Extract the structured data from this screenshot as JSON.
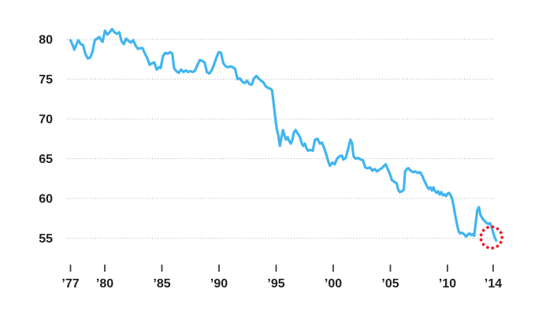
{
  "chart_data": {
    "type": "line",
    "title": "",
    "xlabel": "",
    "ylabel": "",
    "grid": "horizontal-dotted",
    "line_color": "#41b5f0",
    "grid_color": "#ababab",
    "axis_text_color": "#1f1f1f",
    "tick_mark_color": "#3f3f3f",
    "background_color": "#ffffff",
    "ylim": [
      52.5,
      83
    ],
    "xlim": [
      1976.8,
      2014.4
    ],
    "y_ticks": [
      80,
      75,
      70,
      65,
      60,
      55
    ],
    "y_tick_labels": [
      "80",
      "75",
      "70",
      "65",
      "60",
      "55"
    ],
    "x_ticks": [
      {
        "year": 1977,
        "label": "’77"
      },
      {
        "year": 1980,
        "label": "’80"
      },
      {
        "year": 1985,
        "label": "’85"
      },
      {
        "year": 1990,
        "label": "’90"
      },
      {
        "year": 1995,
        "label": "’95"
      },
      {
        "year": 2000,
        "label": "’00"
      },
      {
        "year": 2005,
        "label": "’05"
      },
      {
        "year": 2010,
        "label": "’10"
      },
      {
        "year": 2014,
        "label": "’14"
      }
    ],
    "annotation": {
      "shape": "dotted-circle",
      "year": 2013.85,
      "value": 55.1,
      "color": "#ec1c2c"
    },
    "x": [
      1977.0,
      1977.21,
      1977.34,
      1977.55,
      1977.69,
      1977.89,
      1978.1,
      1978.3,
      1978.51,
      1978.72,
      1978.92,
      1979.13,
      1979.33,
      1979.54,
      1979.68,
      1979.81,
      1980.02,
      1980.23,
      1980.43,
      1980.64,
      1980.84,
      1981.05,
      1981.26,
      1981.46,
      1981.67,
      1981.87,
      1982.08,
      1982.28,
      1982.49,
      1982.7,
      1982.9,
      1983.11,
      1983.31,
      1983.52,
      1983.73,
      1983.93,
      1984.14,
      1984.34,
      1984.55,
      1984.76,
      1984.89,
      1985.1,
      1985.3,
      1985.51,
      1985.72,
      1985.92,
      1986.06,
      1986.27,
      1986.47,
      1986.68,
      1986.88,
      1987.09,
      1987.3,
      1987.5,
      1987.71,
      1987.91,
      1988.12,
      1988.32,
      1988.53,
      1988.74,
      1988.94,
      1989.15,
      1989.35,
      1989.56,
      1989.77,
      1989.97,
      1990.18,
      1990.38,
      1990.59,
      1990.8,
      1991.0,
      1991.21,
      1991.41,
      1991.62,
      1991.83,
      1992.03,
      1992.24,
      1992.44,
      1992.65,
      1992.86,
      1993.06,
      1993.27,
      1993.47,
      1993.68,
      1993.88,
      1994.09,
      1994.3,
      1994.5,
      1994.64,
      1994.78,
      1994.91,
      1995.05,
      1995.19,
      1995.33,
      1995.46,
      1995.6,
      1995.74,
      1995.87,
      1996.01,
      1996.15,
      1996.29,
      1996.42,
      1996.56,
      1996.7,
      1996.83,
      1996.97,
      1997.11,
      1997.25,
      1997.38,
      1997.52,
      1997.66,
      1997.79,
      1998.0,
      1998.21,
      1998.41,
      1998.62,
      1998.82,
      1999.03,
      1999.24,
      1999.37,
      1999.58,
      1999.72,
      1999.92,
      2000.13,
      2000.33,
      2000.54,
      2000.75,
      2000.88,
      2001.09,
      2001.3,
      2001.5,
      2001.64,
      2001.78,
      2001.98,
      2002.19,
      2002.39,
      2002.6,
      2002.81,
      2003.01,
      2003.22,
      2003.42,
      2003.63,
      2003.83,
      2004.04,
      2004.25,
      2004.45,
      2004.59,
      2004.8,
      2004.93,
      2005.14,
      2005.34,
      2005.55,
      2005.69,
      2005.82,
      2006.03,
      2006.17,
      2006.3,
      2006.44,
      2006.58,
      2006.78,
      2006.99,
      2007.2,
      2007.4,
      2007.61,
      2007.81,
      2007.95,
      2008.09,
      2008.22,
      2008.36,
      2008.5,
      2008.64,
      2008.77,
      2008.91,
      2009.05,
      2009.18,
      2009.32,
      2009.46,
      2009.6,
      2009.73,
      2009.87,
      2010.01,
      2010.14,
      2010.28,
      2010.42,
      2010.56,
      2010.69,
      2010.83,
      2010.97,
      2011.1,
      2011.24,
      2011.38,
      2011.52,
      2011.65,
      2011.79,
      2011.93,
      2012.06,
      2012.2,
      2012.34,
      2012.48,
      2012.61,
      2012.75,
      2012.89,
      2013.02,
      2013.16,
      2013.3,
      2013.43,
      2013.57,
      2013.71,
      2013.85,
      2013.98,
      2014.12,
      2014.26
    ],
    "values": [
      79.9,
      79.2,
      78.7,
      79.5,
      79.9,
      79.4,
      79.3,
      78.2,
      77.6,
      77.7,
      78.4,
      79.9,
      80.1,
      80.3,
      79.9,
      79.7,
      81.1,
      80.6,
      80.9,
      81.3,
      80.9,
      80.7,
      80.9,
      79.8,
      79.4,
      80.1,
      79.8,
      79.6,
      79.9,
      79.2,
      78.8,
      78.9,
      78.9,
      78.2,
      77.6,
      76.8,
      77.0,
      77.1,
      76.2,
      76.5,
      76.4,
      77.9,
      78.3,
      78.2,
      78.4,
      78.2,
      76.4,
      76.0,
      75.8,
      76.2,
      75.9,
      76.1,
      75.9,
      76.0,
      75.9,
      76.1,
      76.8,
      77.4,
      77.3,
      77.1,
      75.9,
      75.7,
      76.1,
      76.8,
      77.7,
      78.4,
      78.3,
      77.0,
      76.6,
      76.5,
      76.6,
      76.5,
      76.3,
      75.0,
      75.1,
      74.7,
      74.5,
      74.8,
      74.4,
      74.3,
      75.1,
      75.4,
      75.1,
      74.8,
      74.6,
      74.1,
      73.9,
      73.8,
      73.6,
      72.0,
      70.3,
      68.8,
      67.9,
      66.6,
      67.6,
      68.6,
      67.9,
      67.4,
      67.7,
      67.2,
      66.9,
      67.4,
      68.3,
      68.6,
      68.3,
      68.0,
      67.6,
      66.9,
      66.6,
      66.9,
      66.3,
      66.0,
      66.1,
      66.0,
      67.4,
      67.5,
      66.9,
      67.0,
      66.2,
      65.6,
      64.6,
      64.1,
      64.5,
      64.3,
      65.0,
      65.3,
      65.4,
      64.9,
      65.1,
      66.2,
      67.4,
      67.0,
      65.3,
      65.0,
      65.1,
      64.9,
      64.8,
      63.9,
      63.8,
      63.9,
      63.5,
      63.7,
      63.4,
      63.6,
      63.8,
      64.1,
      64.3,
      63.6,
      63.2,
      62.3,
      62.1,
      61.9,
      61.1,
      60.8,
      60.9,
      61.1,
      63.4,
      63.7,
      63.8,
      63.5,
      63.3,
      63.4,
      63.2,
      63.3,
      62.8,
      62.3,
      61.9,
      61.5,
      61.2,
      61.4,
      61.0,
      61.4,
      60.9,
      60.7,
      60.9,
      60.5,
      60.8,
      60.4,
      60.5,
      60.3,
      60.6,
      60.7,
      60.4,
      59.9,
      58.9,
      57.8,
      56.8,
      55.9,
      55.6,
      55.7,
      55.6,
      55.4,
      55.2,
      55.5,
      55.6,
      55.4,
      55.5,
      55.3,
      57.0,
      58.5,
      58.9,
      57.9,
      57.6,
      57.3,
      57.1,
      56.9,
      56.8,
      56.9,
      56.5,
      55.8,
      55.2,
      54.7
    ]
  }
}
